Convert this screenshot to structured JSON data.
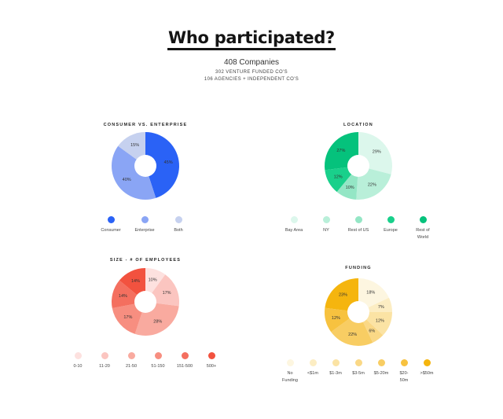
{
  "header": {
    "title": "Who participated?",
    "count": "408 Companies",
    "line1": "302 VENTURE FUNDED CO'S",
    "line2": "106 AGENCIES + INDEPENDENT CO'S"
  },
  "chart_data": [
    {
      "type": "pie",
      "title": "CONSUMER VS. ENTERPRISE",
      "categories": [
        "Consumer",
        "Enterprise",
        "Both"
      ],
      "values": [
        45,
        40,
        15
      ],
      "colors": [
        "#2a62f6",
        "#8aa5f5",
        "#c6d1ef"
      ],
      "labels": [
        "45%",
        "40%",
        "15%"
      ],
      "legend_position": "bottom"
    },
    {
      "type": "pie",
      "title": "LOCATION",
      "categories": [
        "Bay Area",
        "NY",
        "Rest of US",
        "Europe",
        "Rest of World"
      ],
      "values": [
        29,
        22,
        10,
        12,
        27
      ],
      "colors": [
        "#dcf7ec",
        "#b9efd9",
        "#94e6c5",
        "#19d08b",
        "#05c27c"
      ],
      "labels": [
        "29%",
        "22%",
        "10%",
        "12%",
        "27%"
      ],
      "legend_position": "bottom"
    },
    {
      "type": "pie",
      "title": "SIZE - # OF EMPLOYEES",
      "categories": [
        "0-10",
        "11-20",
        "21-50",
        "51-150",
        "151-500",
        "500+"
      ],
      "values": [
        10,
        17,
        28,
        17,
        14,
        14
      ],
      "colors": [
        "#fde1df",
        "#fbc5c0",
        "#f9aa9f",
        "#f78e80",
        "#f46f5f",
        "#f2523f"
      ],
      "labels": [
        "10%",
        "17%",
        "28%",
        "17%",
        "14%",
        "14%"
      ],
      "legend_position": "bottom"
    },
    {
      "type": "pie",
      "title": "FUNDING",
      "categories": [
        "No Funding",
        "<$1m",
        "$1-3m",
        "$3-5m",
        "$5-20m",
        "$20-50m",
        ">$50m"
      ],
      "values": [
        18,
        7,
        12,
        6,
        22,
        12,
        23
      ],
      "colors": [
        "#fdf6e0",
        "#fcedc3",
        "#fbe3a4",
        "#fad886",
        "#f8cd63",
        "#f7c23f",
        "#f5b50e"
      ],
      "labels": [
        "18%",
        "7%",
        "12%",
        "6%",
        "22%",
        "12%",
        "23%"
      ],
      "legend_position": "bottom"
    }
  ]
}
